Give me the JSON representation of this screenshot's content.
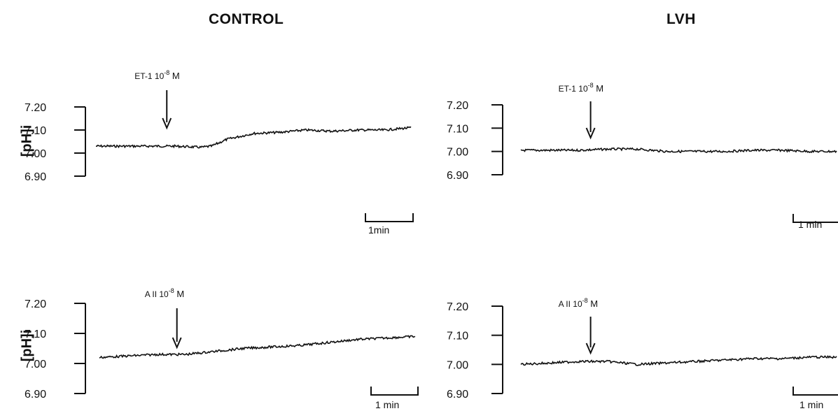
{
  "columns": [
    {
      "title": "CONTROL"
    },
    {
      "title": "LVH"
    }
  ],
  "ylabel": "[pH]i",
  "chart_data": [
    {
      "type": "line",
      "column": "CONTROL",
      "ylabel": "[pH]i",
      "yticks": [
        "7.20",
        "7.10",
        "7.00",
        "6.90"
      ],
      "ylim": [
        6.9,
        7.2
      ],
      "annotation": {
        "agent": "ET-1 10",
        "exponent": "-8",
        "unit": "M",
        "at_minute": 1.35
      },
      "scale_bar": "1min",
      "x_unit": "min",
      "series": [
        {
          "x": [
            0,
            0.5,
            1,
            1.5,
            2,
            2.2,
            2.5,
            3,
            3.5,
            4,
            4.5,
            5,
            5.5,
            6
          ],
          "y": [
            7.03,
            7.03,
            7.03,
            7.03,
            7.025,
            7.03,
            7.06,
            7.085,
            7.09,
            7.1,
            7.095,
            7.1,
            7.1,
            7.11
          ]
        }
      ]
    },
    {
      "type": "line",
      "column": "LVH",
      "ylabel": "",
      "yticks": [
        "7.20",
        "7.10",
        "7.00",
        "6.90"
      ],
      "ylim": [
        6.9,
        7.2
      ],
      "annotation": {
        "agent": "ET-1 10",
        "exponent": "-8",
        "unit": "M",
        "at_minute": 1.2
      },
      "scale_bar": "1 min",
      "x_unit": "min",
      "series": [
        {
          "x": [
            0,
            0.5,
            1,
            1.5,
            2,
            2.5,
            3,
            3.5,
            4,
            4.5,
            5,
            5.5
          ],
          "y": [
            7.005,
            7.005,
            7.005,
            7.01,
            7.01,
            7.0,
            7.0,
            7.0,
            7.005,
            7.005,
            7.0,
            7.0
          ]
        }
      ]
    },
    {
      "type": "line",
      "column": "CONTROL",
      "ylabel": "[pH]i",
      "yticks": [
        "7.20",
        "7.10",
        "7.00",
        "6.90"
      ],
      "ylim": [
        6.9,
        7.2
      ],
      "annotation": {
        "agent": "A II 10",
        "exponent": "-8",
        "unit": "M",
        "at_minute": 1.35
      },
      "scale_bar": "1 min",
      "x_unit": "min",
      "series": [
        {
          "x": [
            0,
            0.5,
            1,
            1.5,
            2,
            2.5,
            3,
            3.5,
            4,
            4.5,
            5,
            5.5
          ],
          "y": [
            7.02,
            7.025,
            7.03,
            7.03,
            7.04,
            7.05,
            7.055,
            7.06,
            7.07,
            7.08,
            7.085,
            7.09
          ]
        }
      ]
    },
    {
      "type": "line",
      "column": "LVH",
      "ylabel": "",
      "yticks": [
        "7.20",
        "7.10",
        "7.00",
        "6.90"
      ],
      "ylim": [
        6.9,
        7.2
      ],
      "annotation": {
        "agent": "A II 10",
        "exponent": "-8",
        "unit": "M",
        "at_minute": 1.2
      },
      "scale_bar": "1 min",
      "x_unit": "min",
      "series": [
        {
          "x": [
            0,
            0.5,
            1,
            1.5,
            2,
            2.5,
            3,
            3.5,
            4,
            4.5,
            5,
            5.5
          ],
          "y": [
            7.0,
            7.005,
            7.01,
            7.01,
            7.0,
            7.005,
            7.01,
            7.015,
            7.02,
            7.02,
            7.025,
            7.025
          ]
        }
      ]
    }
  ]
}
